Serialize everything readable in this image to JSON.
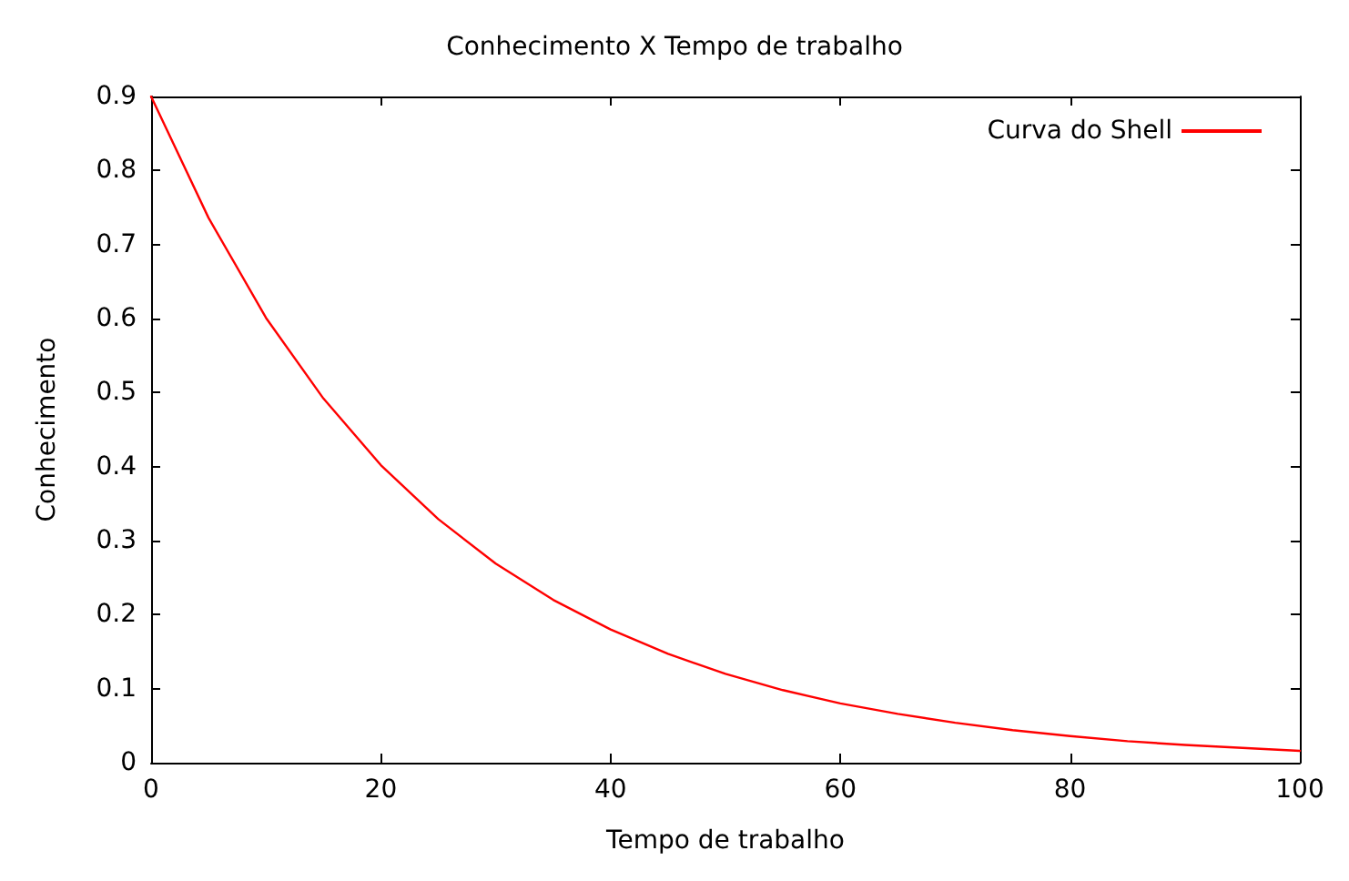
{
  "chart_data": {
    "type": "line",
    "title": "Conhecimento X Tempo de trabalho",
    "xlabel": "Tempo de trabalho",
    "ylabel": "Conhecimento",
    "x": [
      0,
      5,
      10,
      15,
      20,
      25,
      30,
      35,
      40,
      45,
      50,
      55,
      60,
      65,
      70,
      75,
      80,
      85,
      90,
      95,
      100
    ],
    "series": [
      {
        "name": "Curva do Shell",
        "color": "#ff0000",
        "values": [
          0.9,
          0.736,
          0.601,
          0.492,
          0.402,
          0.329,
          0.269,
          0.22,
          0.18,
          0.147,
          0.12,
          0.098,
          0.08,
          0.066,
          0.054,
          0.044,
          0.036,
          0.029,
          0.024,
          0.02,
          0.016
        ]
      }
    ],
    "xlim": [
      0,
      100
    ],
    "xticks": [
      0,
      20,
      40,
      60,
      80,
      100
    ],
    "ylim": [
      0,
      0.9
    ],
    "yticks": [
      0,
      0.1,
      0.2,
      0.3,
      0.4,
      0.5,
      0.6,
      0.7,
      0.8,
      0.9
    ],
    "grid": false,
    "legend": "top right",
    "marker": "none",
    "line_style": "solid"
  }
}
